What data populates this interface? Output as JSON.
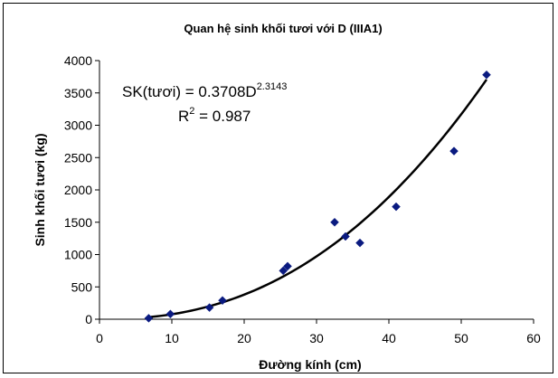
{
  "chart_data": {
    "type": "scatter",
    "title": "Quan hệ sinh khối tươi với D (IIIA1)",
    "xlabel": "Đường kính (cm)",
    "ylabel": "Sinh khối tươi (kg)",
    "xlim": [
      0,
      60
    ],
    "ylim": [
      0,
      4000
    ],
    "xticks": [
      "0",
      "10",
      "20",
      "30",
      "40",
      "50",
      "60"
    ],
    "yticks": [
      "0",
      "500",
      "1000",
      "1500",
      "2000",
      "2500",
      "3000",
      "3500",
      "4000"
    ],
    "grid": false,
    "legend": "none",
    "series": [
      {
        "marker": "diamond",
        "color": "#0a1a80",
        "x": [
          6.8,
          9.8,
          15.2,
          17.0,
          25.4,
          26.0,
          32.5,
          34.0,
          36.0,
          41.0,
          49.0,
          53.5
        ],
        "y": [
          15,
          80,
          180,
          290,
          750,
          820,
          1500,
          1280,
          1180,
          1740,
          2600,
          3780
        ]
      }
    ],
    "trendline": {
      "type": "power",
      "coefficient": 0.3708,
      "exponent": 2.3143,
      "x_range": [
        6.8,
        53.5
      ],
      "color": "#000000"
    },
    "annotations": {
      "equation_prefix": "SK(tươi) = 0.3708D",
      "equation_exponent": "2.3143",
      "r2_prefix": "R",
      "r2_exponent": "2",
      "r2_suffix": " = 0.987"
    }
  }
}
